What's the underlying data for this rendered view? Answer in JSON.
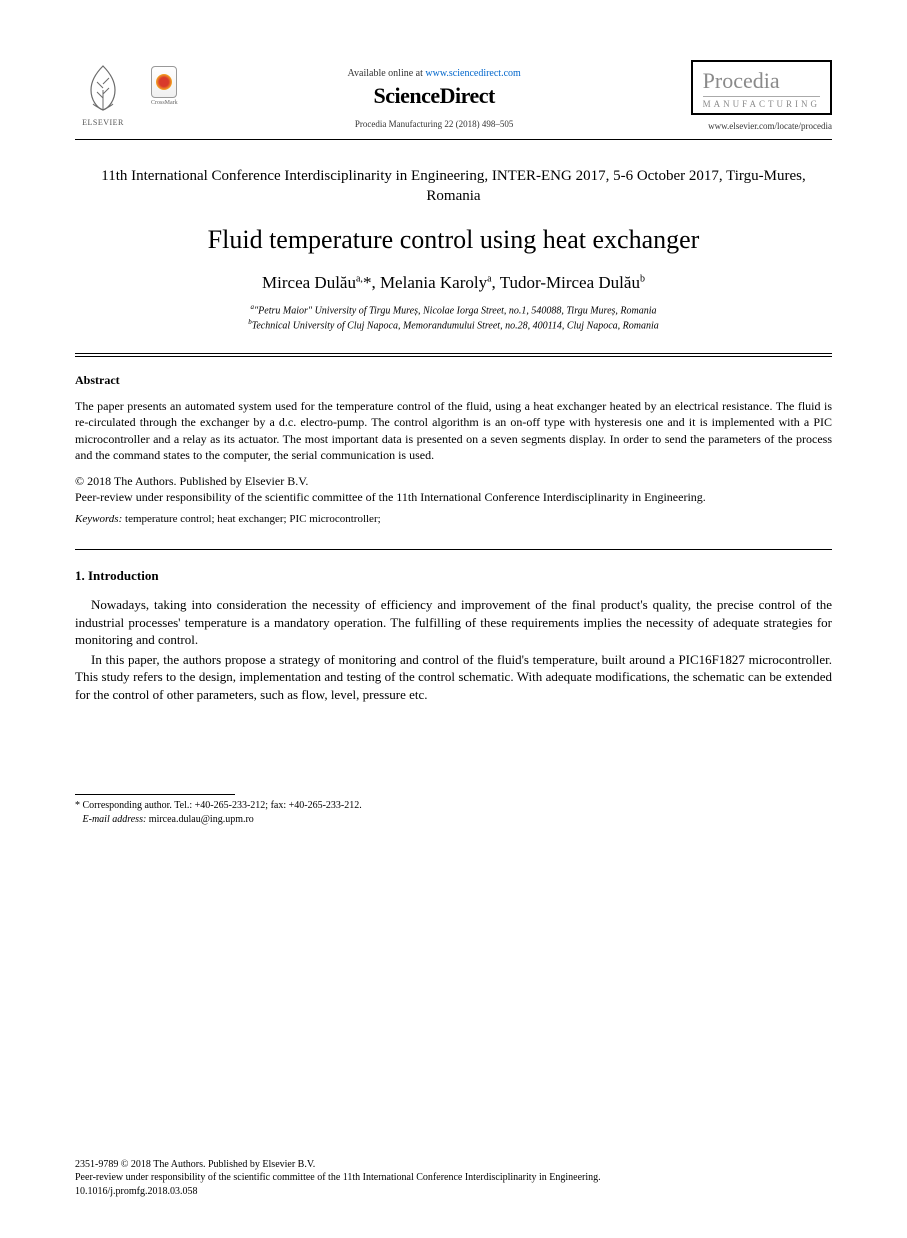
{
  "header": {
    "elsevier_label": "ELSEVIER",
    "crossmark_label": "CrossMark",
    "available_prefix": "Available online at ",
    "available_url": "www.sciencedirect.com",
    "sciencedirect": "ScienceDirect",
    "citation": "Procedia Manufacturing 22 (2018) 498–505",
    "journal_name": "Procedia",
    "journal_sub": "MANUFACTURING",
    "journal_url": "www.elsevier.com/locate/procedia"
  },
  "conference": "11th International Conference Interdisciplinarity in Engineering, INTER-ENG 2017, 5-6 October 2017, Tirgu-Mures, Romania",
  "title": "Fluid temperature control using heat exchanger",
  "authors_html": "Mircea Dulău<sup>a,</sup>*, Melania Karoly<sup>a</sup>, Tudor-Mircea Dulău<sup>b</sup>",
  "affiliations": {
    "a": "\"Petru Maior\" University of Tirgu Mureș, Nicolae Iorga Street, no.1, 540088, Tirgu Mureș, Romania",
    "b": "Technical University of Cluj Napoca, Memorandumului Street, no.28, 400114, Cluj Napoca, Romania"
  },
  "abstract": {
    "heading": "Abstract",
    "text": "The paper presents an automated system used for the temperature control of the fluid, using a heat exchanger heated by an electrical resistance. The fluid is re-circulated through the exchanger by a d.c. electro-pump. The control algorithm is an on-off type with hysteresis one and it is implemented with a PIC microcontroller and a relay as its actuator. The most important data is presented on a seven segments display. In order to send the parameters of the process and the command states to the computer, the serial communication is used."
  },
  "copyright": {
    "line1": "© 2018 The Authors. Published by Elsevier B.V.",
    "line2": "Peer-review under responsibility of the scientific committee of the 11th International Conference Interdisciplinarity in Engineering."
  },
  "keywords": {
    "label": "Keywords:",
    "text": " temperature control; heat exchanger; PIC microcontroller;"
  },
  "introduction": {
    "heading": "1. Introduction",
    "para1": "Nowadays, taking into consideration the necessity of efficiency and improvement of the final product's quality, the precise control of the industrial processes' temperature is a mandatory operation. The fulfilling of these requirements implies the necessity of adequate strategies for monitoring and control.",
    "para2": "In this paper, the authors propose a strategy of monitoring and control of the fluid's temperature, built around a PIC16F1827 microcontroller. This study refers to the design, implementation and testing of the control schematic. With adequate modifications, the schematic can be extended for the control of other parameters, such as flow, level, pressure etc."
  },
  "footnote": {
    "corresponding": "* Corresponding author. Tel.: +40-265-233-212; fax: +40-265-233-212.",
    "email_label": "E-mail address:",
    "email": " mircea.dulau@ing.upm.ro"
  },
  "footer": {
    "issn_line": "2351-9789 © 2018 The Authors. Published by Elsevier B.V.",
    "peer_line": "Peer-review under responsibility of the scientific committee of the 11th International Conference Interdisciplinarity in Engineering.",
    "doi": "10.1016/j.promfg.2018.03.058"
  },
  "colors": {
    "text": "#000000",
    "link": "#0066cc",
    "journal_gray": "#8a8a8a",
    "background": "#ffffff"
  },
  "typography": {
    "title_fontsize_pt": 20,
    "authors_fontsize_pt": 13,
    "body_fontsize_pt": 10,
    "abstract_fontsize_pt": 9,
    "footnote_fontsize_pt": 8,
    "font_family": "Times New Roman"
  }
}
